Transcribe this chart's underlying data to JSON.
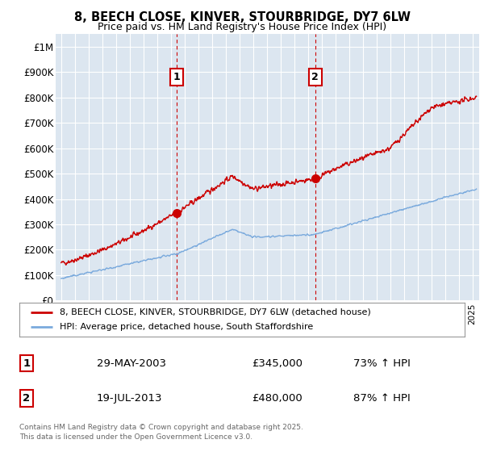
{
  "title": "8, BEECH CLOSE, KINVER, STOURBRIDGE, DY7 6LW",
  "subtitle": "Price paid vs. HM Land Registry's House Price Index (HPI)",
  "ylim": [
    0,
    1050000
  ],
  "yticks": [
    0,
    100000,
    200000,
    300000,
    400000,
    500000,
    600000,
    700000,
    800000,
    900000,
    1000000
  ],
  "ytick_labels": [
    "£0",
    "£100K",
    "£200K",
    "£300K",
    "£400K",
    "£500K",
    "£600K",
    "£700K",
    "£800K",
    "£900K",
    "£1M"
  ],
  "xlim_start": 1994.6,
  "xlim_end": 2025.5,
  "red_line_color": "#cc0000",
  "blue_line_color": "#7aaadd",
  "sale1_year": 2003.41,
  "sale1_price": 345000,
  "sale2_year": 2013.54,
  "sale2_price": 480000,
  "legend_line1": "8, BEECH CLOSE, KINVER, STOURBRIDGE, DY7 6LW (detached house)",
  "legend_line2": "HPI: Average price, detached house, South Staffordshire",
  "table_row1": [
    "1",
    "29-MAY-2003",
    "£345,000",
    "73% ↑ HPI"
  ],
  "table_row2": [
    "2",
    "19-JUL-2013",
    "£480,000",
    "87% ↑ HPI"
  ],
  "footer": "Contains HM Land Registry data © Crown copyright and database right 2025.\nThis data is licensed under the Open Government Licence v3.0.",
  "bg_color": "#ffffff",
  "plot_bg_color": "#dce6f0",
  "grid_color": "#ffffff"
}
